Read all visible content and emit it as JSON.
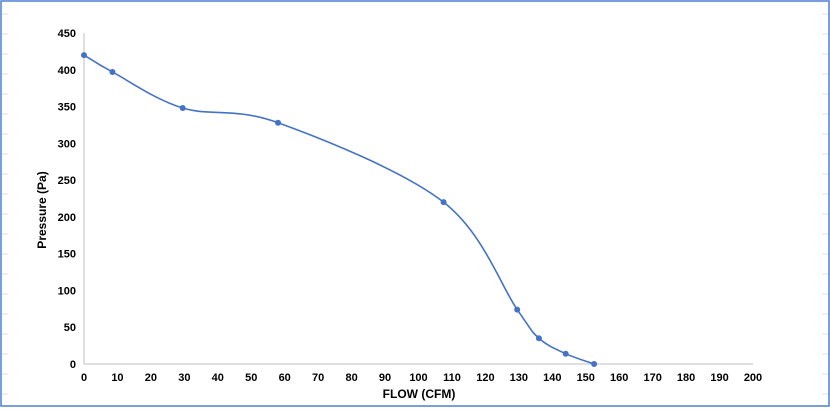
{
  "colors": {
    "series": "#4472c4",
    "axis": "#bfbfbf",
    "frame": "#4f7fcf",
    "grid_band": "#d9e3f0"
  },
  "chart_data": {
    "type": "line",
    "title": "",
    "xlabel": "FLOW (CFM)",
    "ylabel": "Pressure (Pa)",
    "xlim": [
      0,
      200
    ],
    "ylim": [
      0,
      450
    ],
    "x_ticks": [
      "0",
      "10",
      "20",
      "30",
      "40",
      "50",
      "60",
      "70",
      "80",
      "90",
      "100",
      "110",
      "120",
      "130",
      "140",
      "150",
      "160",
      "170",
      "180",
      "190",
      "200"
    ],
    "y_ticks": [
      "0",
      "50",
      "100",
      "150",
      "200",
      "250",
      "300",
      "350",
      "400",
      "450"
    ],
    "grid": false,
    "smooth": true,
    "markers": true,
    "series": [
      {
        "x": [
          0,
          8.5,
          29.5,
          58,
          107.5,
          129.5,
          136,
          144,
          152.5
        ],
        "y": [
          420,
          397,
          348,
          328,
          220,
          74,
          35,
          14,
          0
        ]
      }
    ]
  }
}
